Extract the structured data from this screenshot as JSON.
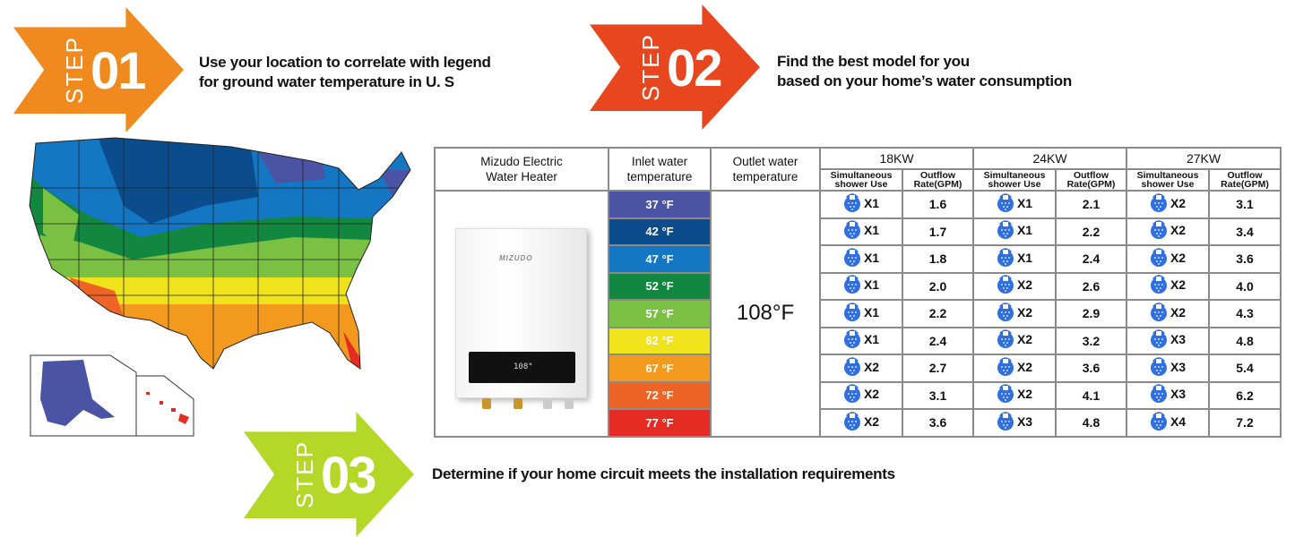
{
  "steps": [
    {
      "word": "STEP",
      "number": "01",
      "color": "#F08A1E",
      "text_line1": "Use your location to correlate with legend",
      "text_line2": "for ground water temperature in U. S"
    },
    {
      "word": "STEP",
      "number": "02",
      "color": "#E8461F",
      "text_line1": "Find the best model for you",
      "text_line2": "based on your home’s water consumption"
    },
    {
      "word": "STEP",
      "number": "03",
      "color": "#B5D727",
      "text_line1": "Determine if your home circuit meets the installation requirements"
    }
  ],
  "table": {
    "headers": {
      "heater": "Mizudo Electric Water Heater",
      "inlet": "Inlet water temperature",
      "outlet": "Outlet water temperature",
      "models": [
        "18KW",
        "24KW",
        "27KW"
      ],
      "sub_use": "Simultaneous shower Use",
      "sub_rate": "Outflow Rate(GPM)"
    },
    "outlet_temp": "108°F",
    "heater_brand": "MIZUDO",
    "heater_display": "108°",
    "rows": [
      {
        "inlet": "37 °F",
        "color": "#4B54A4",
        "kw18": [
          "X1",
          "1.6"
        ],
        "kw24": [
          "X1",
          "2.1"
        ],
        "kw27": [
          "X2",
          "3.1"
        ]
      },
      {
        "inlet": "42 °F",
        "color": "#0B4C8C",
        "kw18": [
          "X1",
          "1.7"
        ],
        "kw24": [
          "X1",
          "2.2"
        ],
        "kw27": [
          "X2",
          "3.4"
        ]
      },
      {
        "inlet": "47 °F",
        "color": "#1477C4",
        "kw18": [
          "X1",
          "1.8"
        ],
        "kw24": [
          "X1",
          "2.4"
        ],
        "kw27": [
          "X2",
          "3.6"
        ]
      },
      {
        "inlet": "52 °F",
        "color": "#12873F",
        "kw18": [
          "X1",
          "2.0"
        ],
        "kw24": [
          "X2",
          "2.6"
        ],
        "kw27": [
          "X2",
          "4.0"
        ]
      },
      {
        "inlet": "57 °F",
        "color": "#7AC143",
        "kw18": [
          "X1",
          "2.2"
        ],
        "kw24": [
          "X2",
          "2.9"
        ],
        "kw27": [
          "X2",
          "4.3"
        ]
      },
      {
        "inlet": "62 °F",
        "color": "#EFE31C",
        "kw18": [
          "X1",
          "2.4"
        ],
        "kw24": [
          "X2",
          "3.2"
        ],
        "kw27": [
          "X3",
          "4.8"
        ]
      },
      {
        "inlet": "67 °F",
        "color": "#F39A1E",
        "kw18": [
          "X2",
          "2.7"
        ],
        "kw24": [
          "X2",
          "3.6"
        ],
        "kw27": [
          "X3",
          "5.4"
        ]
      },
      {
        "inlet": "72 °F",
        "color": "#EE6427",
        "kw18": [
          "X2",
          "3.1"
        ],
        "kw24": [
          "X2",
          "4.1"
        ],
        "kw27": [
          "X3",
          "6.2"
        ]
      },
      {
        "inlet": "77 °F",
        "color": "#E42B24",
        "kw18": [
          "X2",
          "3.6"
        ],
        "kw24": [
          "X3",
          "4.8"
        ],
        "kw27": [
          "X4",
          "7.2"
        ]
      }
    ]
  },
  "icons": {
    "shower": "shower-head-icon"
  }
}
